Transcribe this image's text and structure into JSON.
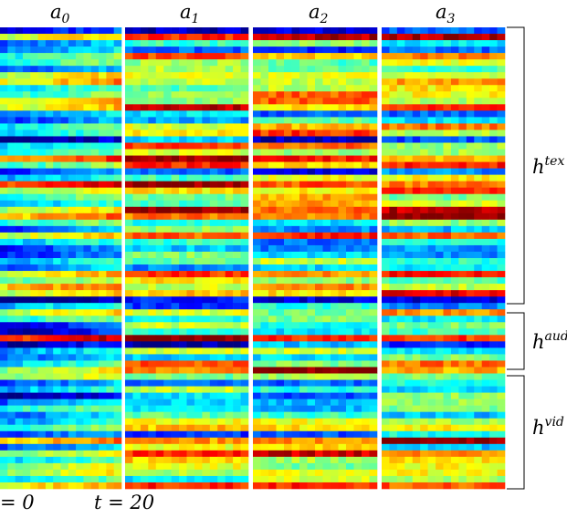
{
  "panels": [
    {
      "base": "a",
      "sub": "0"
    },
    {
      "base": "a",
      "sub": "1"
    },
    {
      "base": "a",
      "sub": "2"
    },
    {
      "base": "a",
      "sub": "3"
    }
  ],
  "groups": [
    {
      "base": "h",
      "sup": "tex"
    },
    {
      "base": "h",
      "sup": "aud"
    },
    {
      "base": "h",
      "sup": "vid"
    }
  ],
  "time_axis": {
    "start": "= 0",
    "end": "t = 20"
  }
}
